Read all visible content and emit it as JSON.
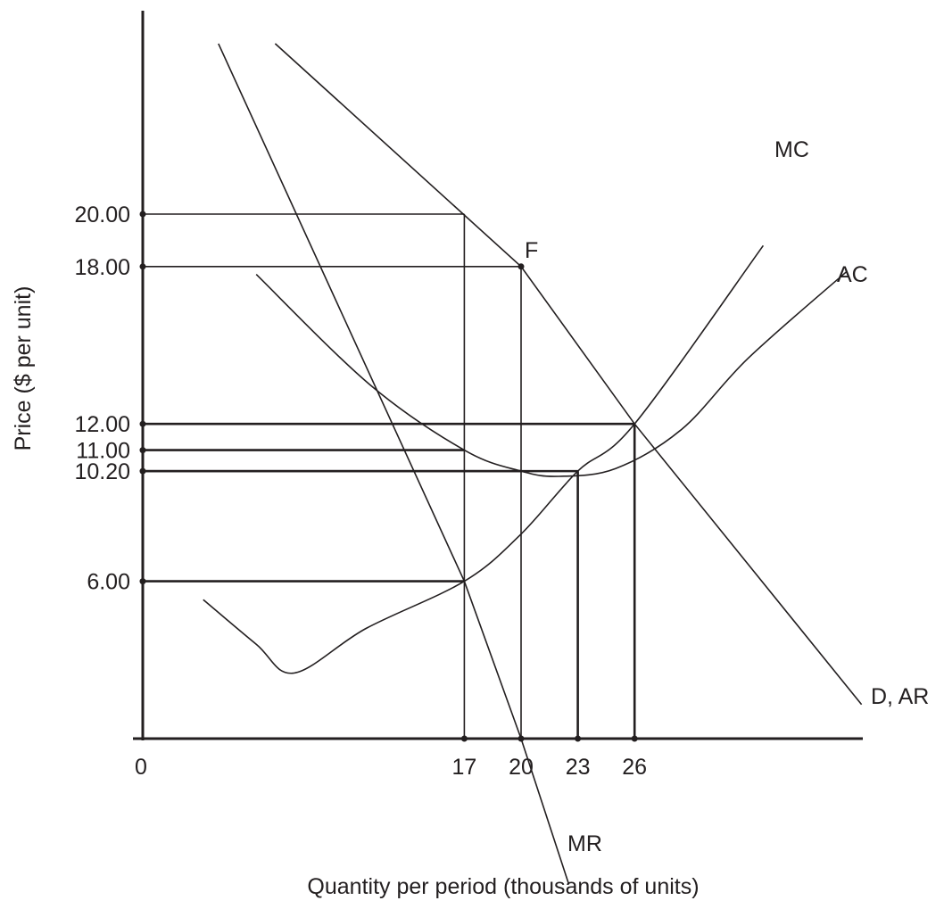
{
  "chart_data": {
    "type": "line",
    "title": "",
    "xlabel": "Quantity per period (thousands of units)",
    "ylabel": "Price ($ per unit)",
    "origin_label": "0",
    "x_ticks": [
      {
        "value": 17,
        "label": "17"
      },
      {
        "value": 20,
        "label": "20"
      },
      {
        "value": 23,
        "label": "23"
      },
      {
        "value": 26,
        "label": "26"
      }
    ],
    "y_ticks": [
      {
        "value": 20,
        "label": "20.00"
      },
      {
        "value": 18,
        "label": "18.00"
      },
      {
        "value": 12,
        "label": "12.00"
      },
      {
        "value": 11,
        "label": "11.00"
      },
      {
        "value": 10.2,
        "label": "10.20"
      },
      {
        "value": 6,
        "label": "6.00"
      }
    ],
    "xlim": [
      0,
      38
    ],
    "ylim": [
      0,
      27
    ],
    "grid": false,
    "series": [
      {
        "name": "D, AR",
        "kind": "straight",
        "points": [
          [
            7,
            26.5
          ],
          [
            20,
            18
          ],
          [
            26,
            12
          ],
          [
            38,
            1.3
          ]
        ]
      },
      {
        "name": "MR",
        "kind": "straight",
        "points": [
          [
            4,
            26.5
          ],
          [
            17,
            6
          ],
          [
            20,
            0
          ],
          [
            22.5,
            -5.5
          ]
        ]
      },
      {
        "name": "MC",
        "kind": "smooth",
        "points": [
          [
            3.2,
            5.3
          ],
          [
            6,
            3.6
          ],
          [
            8,
            2.5
          ],
          [
            11.8,
            4.2
          ],
          [
            17,
            6
          ],
          [
            20,
            7.8
          ],
          [
            23,
            10.2
          ],
          [
            26,
            12
          ],
          [
            32.8,
            18.8
          ]
        ]
      },
      {
        "name": "AC",
        "kind": "smooth",
        "points": [
          [
            6,
            17.7
          ],
          [
            12,
            13.5
          ],
          [
            17,
            11
          ],
          [
            20,
            10.2
          ],
          [
            22,
            10
          ],
          [
            25,
            10.3
          ],
          [
            28.5,
            11.8
          ],
          [
            32,
            14.5
          ],
          [
            37.2,
            17.8
          ]
        ]
      }
    ],
    "point_labels": [
      {
        "text": "F",
        "x": 20,
        "y": 18
      }
    ],
    "guide_lines": [
      {
        "x": 17,
        "y": 20,
        "bold": false
      },
      {
        "x": 20,
        "y": 18,
        "bold": false
      },
      {
        "x": 26,
        "y": 12,
        "bold": true
      },
      {
        "x": 17,
        "y": 11,
        "bold": true
      },
      {
        "x": 20,
        "y": 10.2,
        "bold": true
      },
      {
        "x": 17,
        "y": 6,
        "bold": true
      },
      {
        "x": 23,
        "y": 10.2,
        "bold": true
      }
    ],
    "vertical_drops": [
      {
        "x": 17,
        "y": 20,
        "bold": false
      },
      {
        "x": 20,
        "y": 18,
        "bold": false
      },
      {
        "x": 23,
        "y": 10.2,
        "bold": true
      },
      {
        "x": 26,
        "y": 12,
        "bold": true
      }
    ]
  }
}
